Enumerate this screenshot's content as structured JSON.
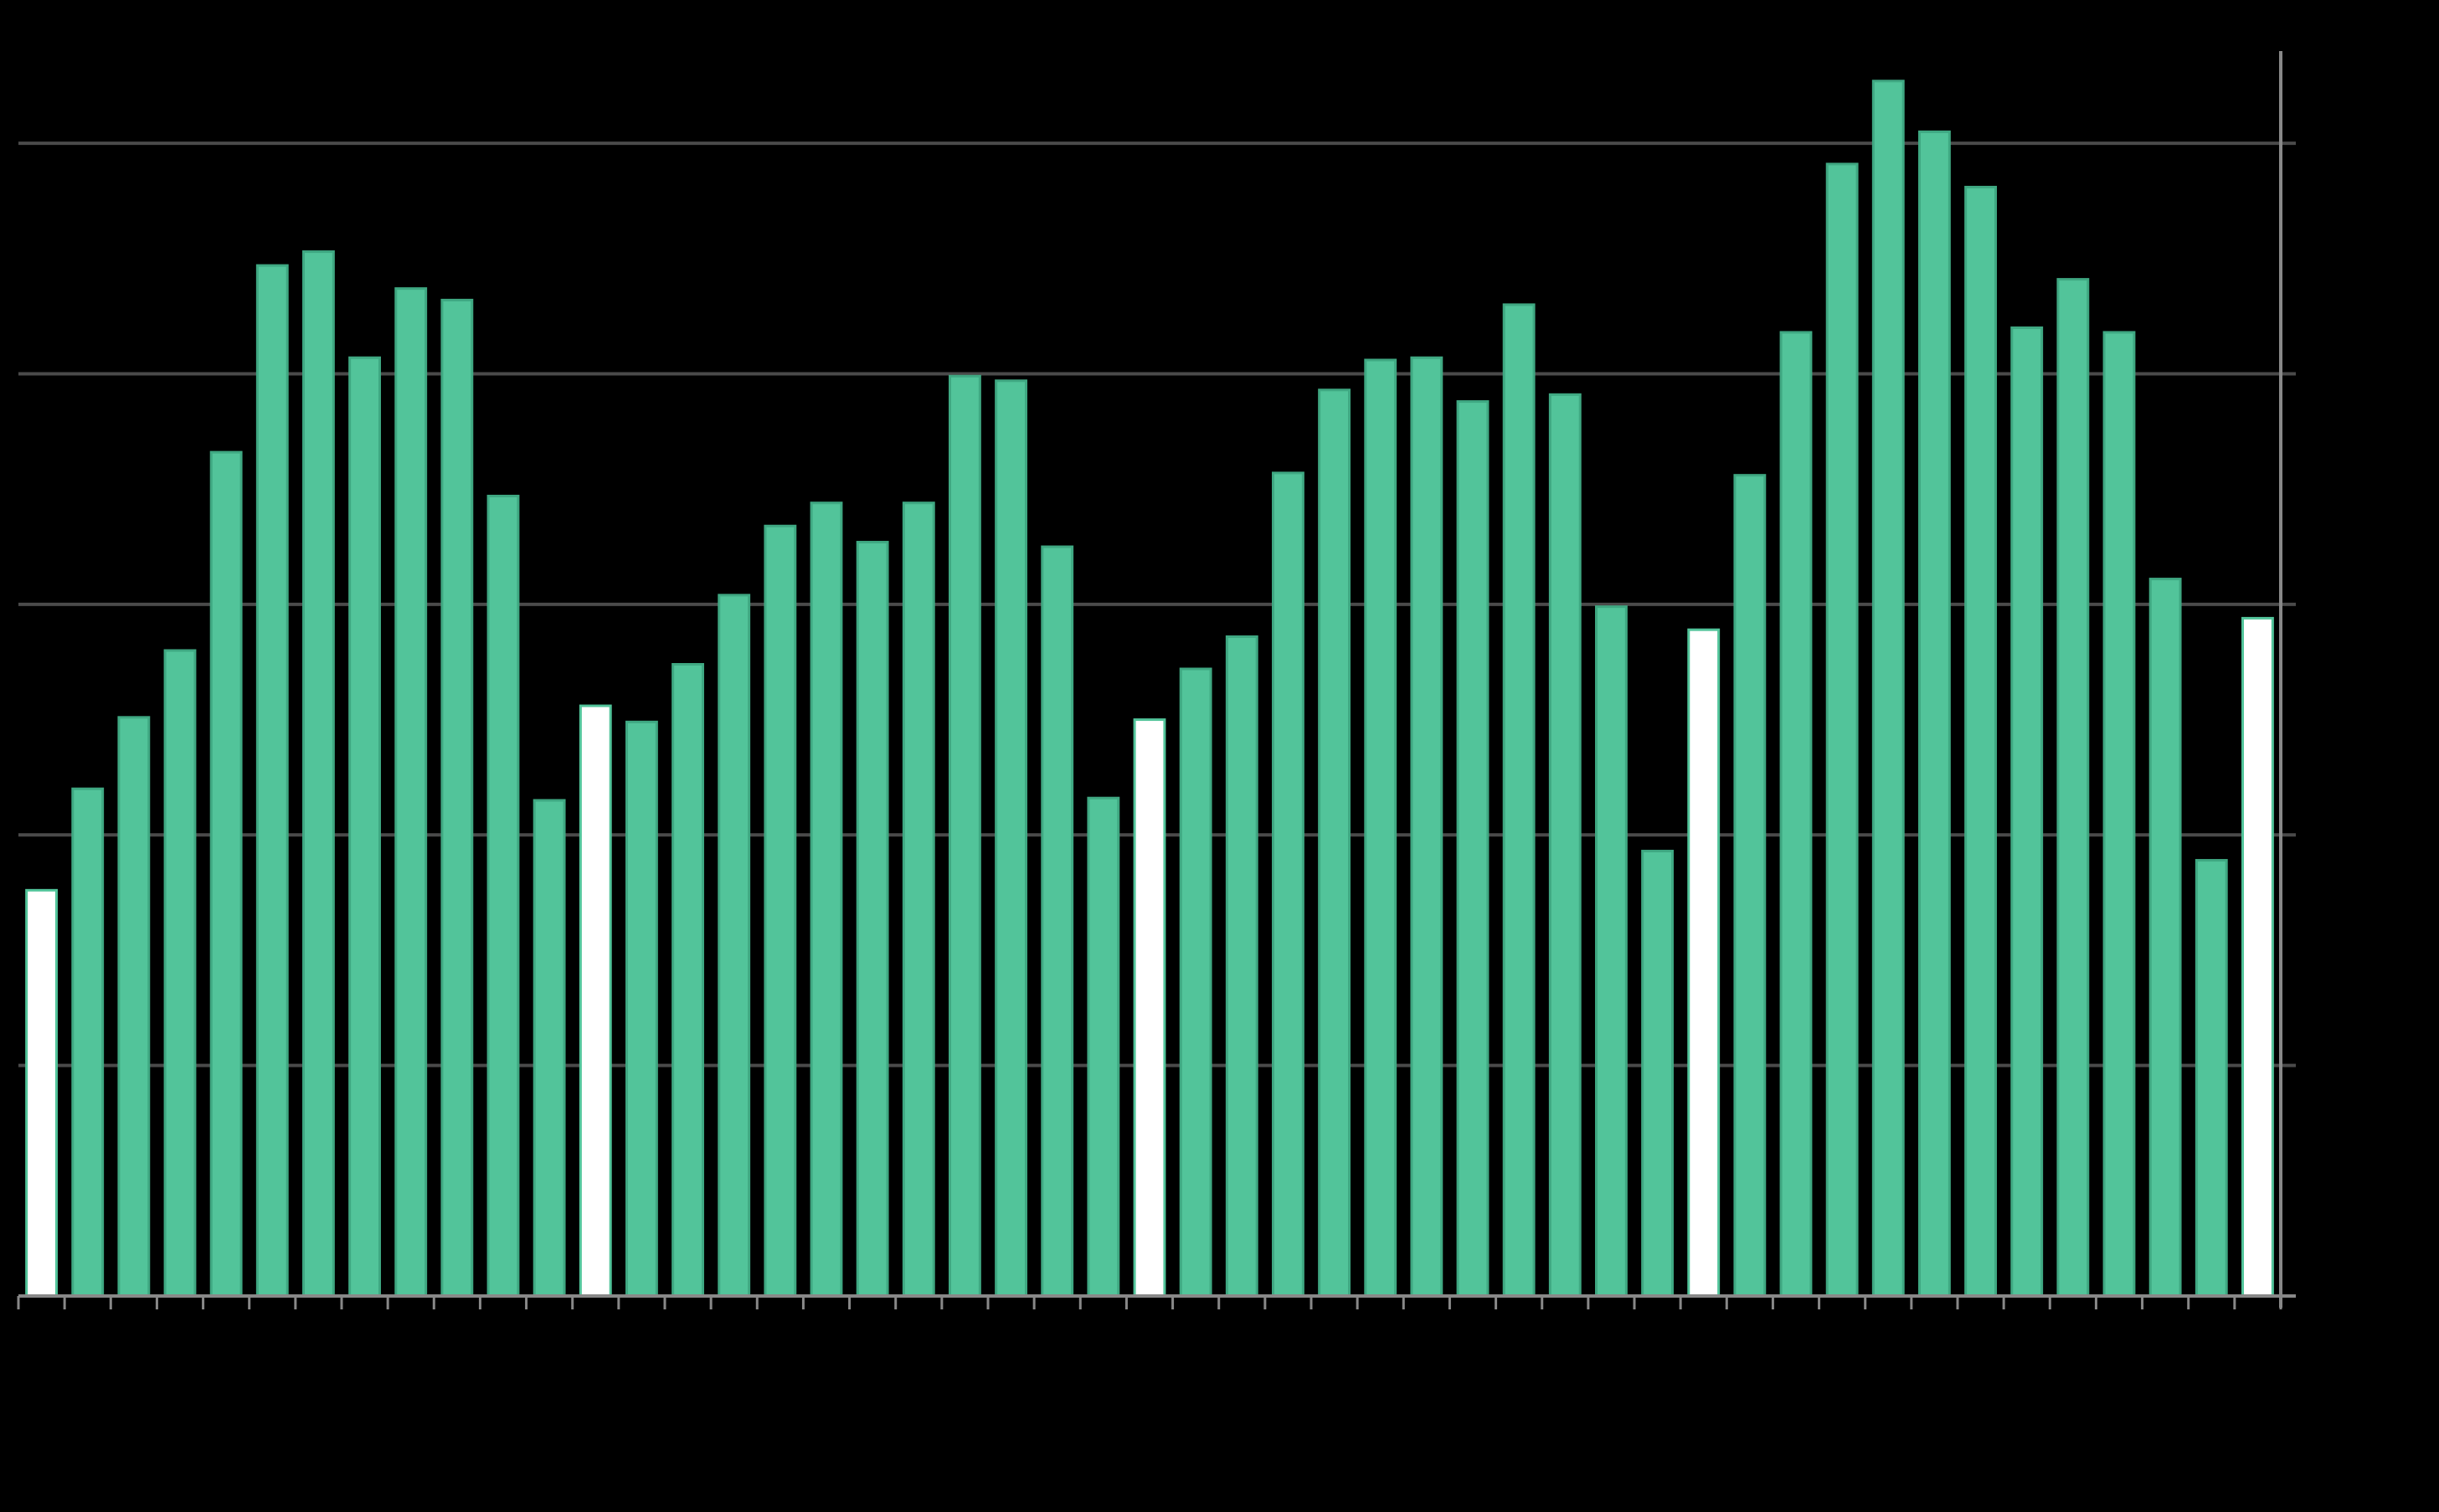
{
  "chart_data": {
    "type": "bar",
    "categories": [
      null,
      null,
      null,
      null,
      null,
      null,
      null,
      null,
      null,
      null,
      null,
      null,
      null,
      null,
      null,
      null,
      null,
      null,
      null,
      null,
      null,
      null,
      null,
      null,
      null,
      null,
      null,
      null,
      null,
      null,
      null,
      null,
      null,
      null,
      null,
      null,
      null,
      null,
      null,
      null,
      null,
      null,
      null,
      null,
      null,
      null,
      null,
      null,
      null
    ],
    "values": [
      1.76,
      2.2,
      2.51,
      2.8,
      3.66,
      4.47,
      4.53,
      4.07,
      4.37,
      4.32,
      3.47,
      2.15,
      2.56,
      2.49,
      2.74,
      3.04,
      3.34,
      3.44,
      3.27,
      3.44,
      3.99,
      3.97,
      3.25,
      2.16,
      2.5,
      2.72,
      2.86,
      3.57,
      3.93,
      4.06,
      4.07,
      3.88,
      4.3,
      3.91,
      2.99,
      1.93,
      2.89,
      3.56,
      4.18,
      4.91,
      5.27,
      5.05,
      4.81,
      4.2,
      4.41,
      4.18,
      3.11,
      1.89,
      2.94
    ],
    "color": "#52c49a",
    "highlight_color": "#ffffff",
    "highlight": [
      0,
      12,
      24,
      36,
      48
    ],
    "ylim": [
      0,
      5.4
    ],
    "yticks": [
      0,
      1,
      2,
      3,
      4,
      5
    ],
    "grid": true
  }
}
